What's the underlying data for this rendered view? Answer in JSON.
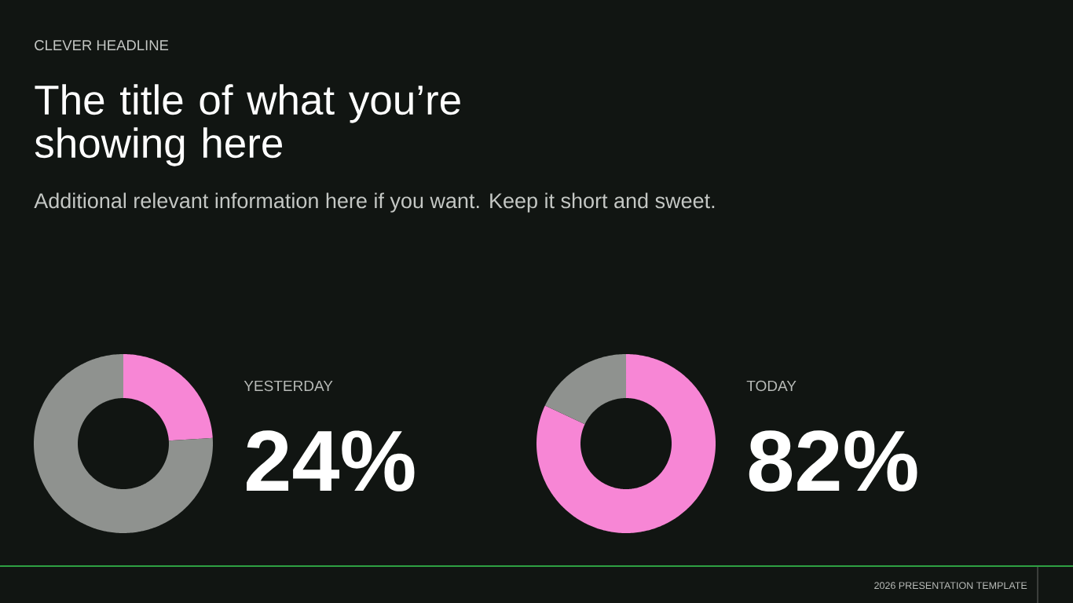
{
  "chart_data": [
    {
      "type": "other",
      "title": "The title of what you’re showing here",
      "subtitle": "Additional relevant information here if you want. Keep it short and sweet.",
      "annotations": [
        "CLEVER HEADLINE",
        "2026 PRESENTATION TEMPLATE"
      ]
    },
    {
      "type": "donut",
      "title": "YESTERDAY",
      "categories": [
        null,
        null
      ],
      "values": [
        24,
        76
      ],
      "colors": [
        "#f786d5",
        "#8f928f"
      ],
      "value_labels": [
        "24%",
        null
      ]
    },
    {
      "type": "donut",
      "title": "TODAY",
      "categories": [
        null,
        null
      ],
      "values": [
        82,
        18
      ],
      "colors": [
        "#f786d5",
        "#8f928f"
      ],
      "value_labels": [
        "82%",
        null
      ]
    }
  ]
}
